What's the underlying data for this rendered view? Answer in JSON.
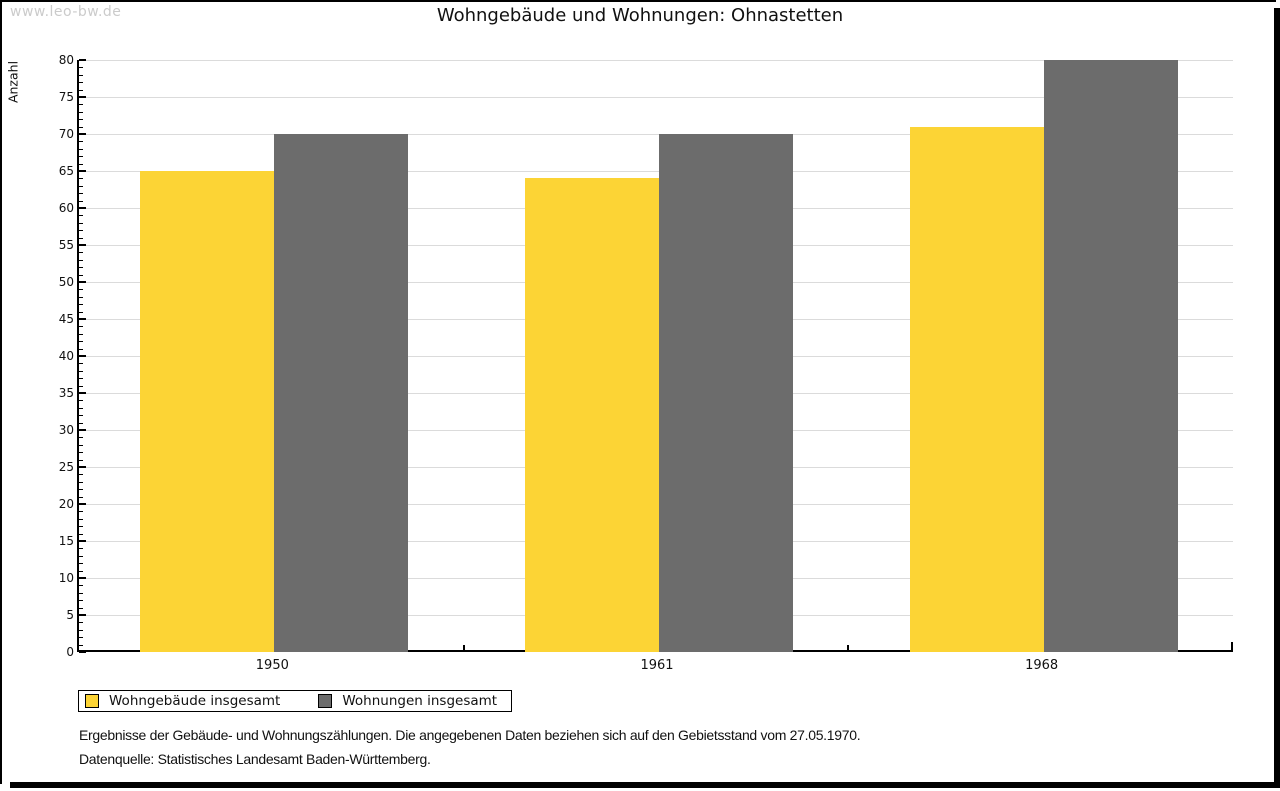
{
  "watermark": "www.leo-bw.de",
  "header": {
    "title": "Wohngebäude und Wohnungen: Ohnastetten"
  },
  "chart_data": {
    "type": "bar",
    "title": "Wohngebäude und Wohnungen: Ohnastetten",
    "xlabel": "",
    "ylabel": "Anzahl",
    "categories": [
      "1950",
      "1961",
      "1968"
    ],
    "series": [
      {
        "name": "Wohngebäude insgesamt",
        "color": "#FCD435",
        "values": [
          65,
          64,
          71
        ]
      },
      {
        "name": "Wohnungen insgesamt",
        "color": "#6C6C6C",
        "values": [
          70,
          70,
          80
        ]
      }
    ],
    "ylim": [
      0,
      80
    ],
    "ytick_step": 5,
    "yminor_step": 1,
    "grid": true,
    "gridline_color": "#dbdbdb",
    "legend_position": "bottom-left"
  },
  "footer": {
    "line1": "Ergebnisse der Gebäude- und Wohnungszählungen. Die angegebenen Daten beziehen sich auf den Gebietsstand vom 27.05.1970.",
    "line2": "Datenquelle: Statistisches Landesamt Baden-Württemberg."
  }
}
